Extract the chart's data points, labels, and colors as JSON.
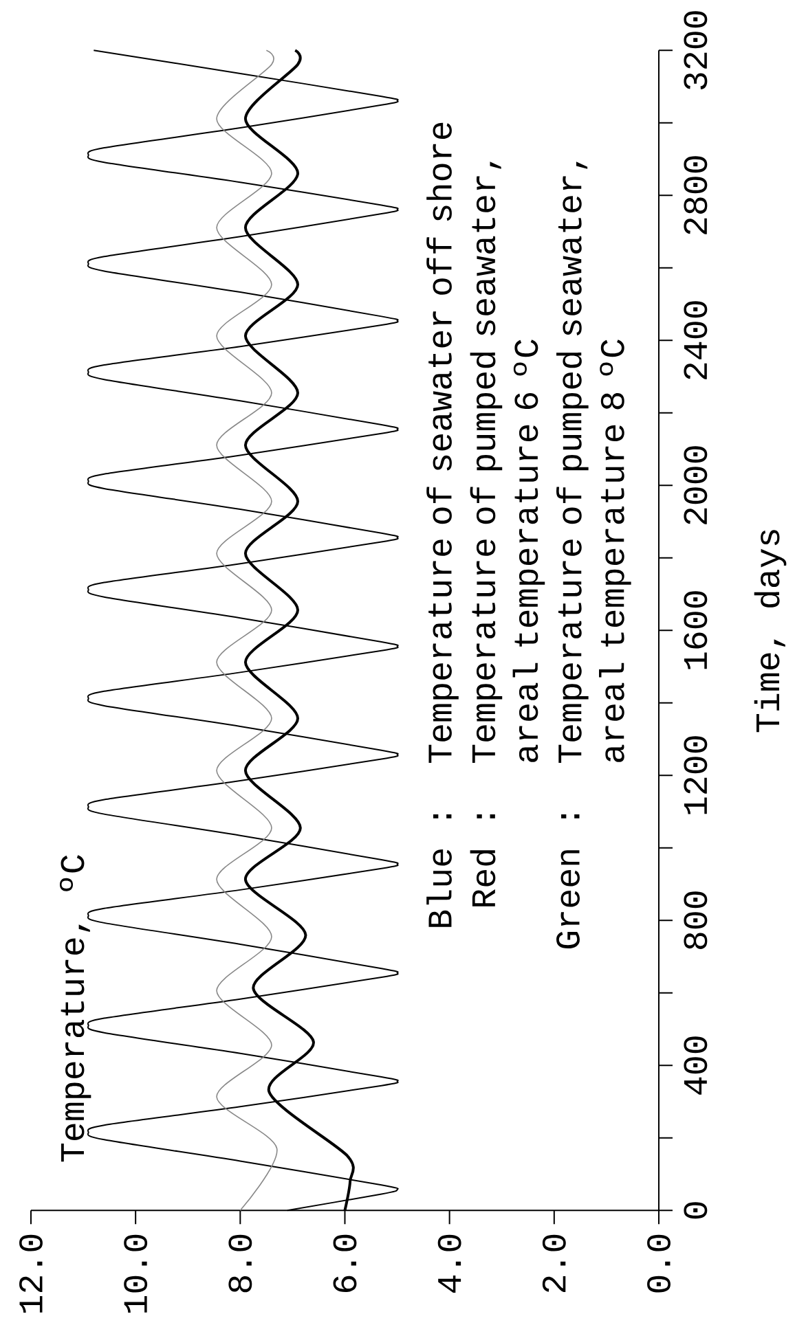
{
  "chart_data": {
    "type": "line",
    "ylabel": "Time, days",
    "annotations": [
      "Blue :",
      "Temperature of seawater off shore",
      "Red :",
      "Temperature of pumped seawater, areal temperature 6 ºC",
      "Green :",
      "Temperature of pumped seawater, areal temperature 8 ºC",
      "Temperature, ºC"
    ],
    "xlim": [
      12,
      0
    ],
    "ylim": [
      0,
      3200
    ],
    "xticks": [
      {
        "value": 0,
        "label": "0.0"
      },
      {
        "value": 2,
        "label": "2.0"
      },
      {
        "value": 4,
        "label": "4.0"
      },
      {
        "value": 6,
        "label": "6.0"
      },
      {
        "value": 8,
        "label": "8.0"
      },
      {
        "value": 10,
        "label": "10.0"
      },
      {
        "value": 12,
        "label": "12.0"
      }
    ],
    "yticks": [
      0,
      {
        "value": 200,
        "label": null
      },
      400,
      {
        "value": 600,
        "label": null
      },
      800,
      {
        "value": 1000,
        "label": null
      },
      1200,
      {
        "value": 1400,
        "label": null
      },
      1600,
      {
        "value": 1800,
        "label": null
      },
      2000,
      {
        "value": 2200,
        "label": null
      },
      2400,
      {
        "value": 2600,
        "label": null
      },
      2800,
      {
        "value": 3000,
        "label": null
      },
      3200
    ],
    "grid": false,
    "legend": false,
    "marker": "none",
    "series": [
      {
        "color": "#000000",
        "values": [
          0,
          45,
          57,
          70,
          136,
          195,
          215,
          235,
          286,
          344,
          356,
          368,
          433,
          490,
          510,
          530,
          583,
          643,
          655,
          667,
          734,
          793,
          813,
          833,
          884,
          943,
          955,
          967,
          1034,
          1093,
          1113,
          1133,
          1185,
          1245,
          1257,
          1269,
          1335,
          1392,
          1412,
          1432,
          1484,
          1544,
          1556,
          1568,
          1634,
          1692,
          1712,
          1732,
          1784,
          1844,
          1856,
          1868,
          1934,
          1991,
          2011,
          2031,
          2083,
          2143,
          2155,
          2167,
          2233,
          2292,
          2312,
          2332,
          2383,
          2442,
          2454,
          2466,
          2533,
          2591,
          2611,
          2631,
          2686,
          2749,
          2761,
          2773,
          2836,
          2891,
          2911,
          2931,
          2986,
          3049,
          3061,
          3073,
          3136,
          3200
        ],
        "x": [
          7.1,
          5.3,
          5.0,
          5.3,
          8.0,
          10.6,
          10.9,
          10.6,
          8.0,
          5.3,
          5.0,
          5.3,
          8.0,
          10.6,
          10.9,
          10.6,
          8.0,
          5.3,
          5.0,
          5.3,
          8.0,
          10.6,
          10.9,
          10.6,
          8.0,
          5.3,
          5.0,
          5.3,
          8.0,
          10.6,
          10.9,
          10.6,
          8.0,
          5.3,
          5.0,
          5.3,
          8.0,
          10.6,
          10.9,
          10.6,
          8.0,
          5.3,
          5.0,
          5.3,
          8.0,
          10.6,
          10.9,
          10.6,
          8.0,
          5.3,
          5.0,
          5.3,
          8.0,
          10.6,
          10.9,
          10.6,
          8.0,
          5.3,
          5.0,
          5.3,
          8.0,
          10.6,
          10.9,
          10.6,
          8.0,
          5.3,
          5.0,
          5.3,
          8.0,
          10.6,
          10.9,
          10.6,
          8.0,
          5.3,
          5.0,
          5.3,
          8.0,
          10.6,
          10.9,
          10.6,
          8.0,
          5.3,
          5.0,
          5.3,
          8.0,
          10.8
        ]
      },
      {
        "color": "#888888",
        "values": [
          0,
          171,
          313,
          456,
          606,
          755,
          913,
          1055,
          1213,
          1357,
          1512,
          1656,
          1812,
          1956,
          2111,
          2255,
          2412,
          2554,
          2711,
          2861,
          3011,
          3161,
          3200
        ],
        "x": [
          8.0,
          7.3,
          8.45,
          7.4,
          8.45,
          7.4,
          8.45,
          7.4,
          8.45,
          7.4,
          8.45,
          7.4,
          8.45,
          7.4,
          8.45,
          7.4,
          8.45,
          7.4,
          8.45,
          7.4,
          8.45,
          7.4,
          7.5
        ]
      },
      {
        "color": "#000000",
        "values": [
          0,
          80,
          150,
          328,
          465,
          613,
          760,
          913,
          1055,
          1213,
          1357,
          1512,
          1656,
          1812,
          1956,
          2111,
          2255,
          2412,
          2554,
          2711,
          2861,
          3011,
          3161,
          3200
        ],
        "x": [
          6.0,
          5.9,
          5.95,
          7.45,
          6.6,
          7.75,
          6.75,
          7.9,
          6.85,
          7.9,
          6.9,
          7.9,
          6.9,
          7.9,
          6.9,
          7.9,
          6.9,
          7.9,
          6.9,
          7.9,
          6.9,
          7.9,
          6.9,
          6.95
        ]
      }
    ]
  }
}
